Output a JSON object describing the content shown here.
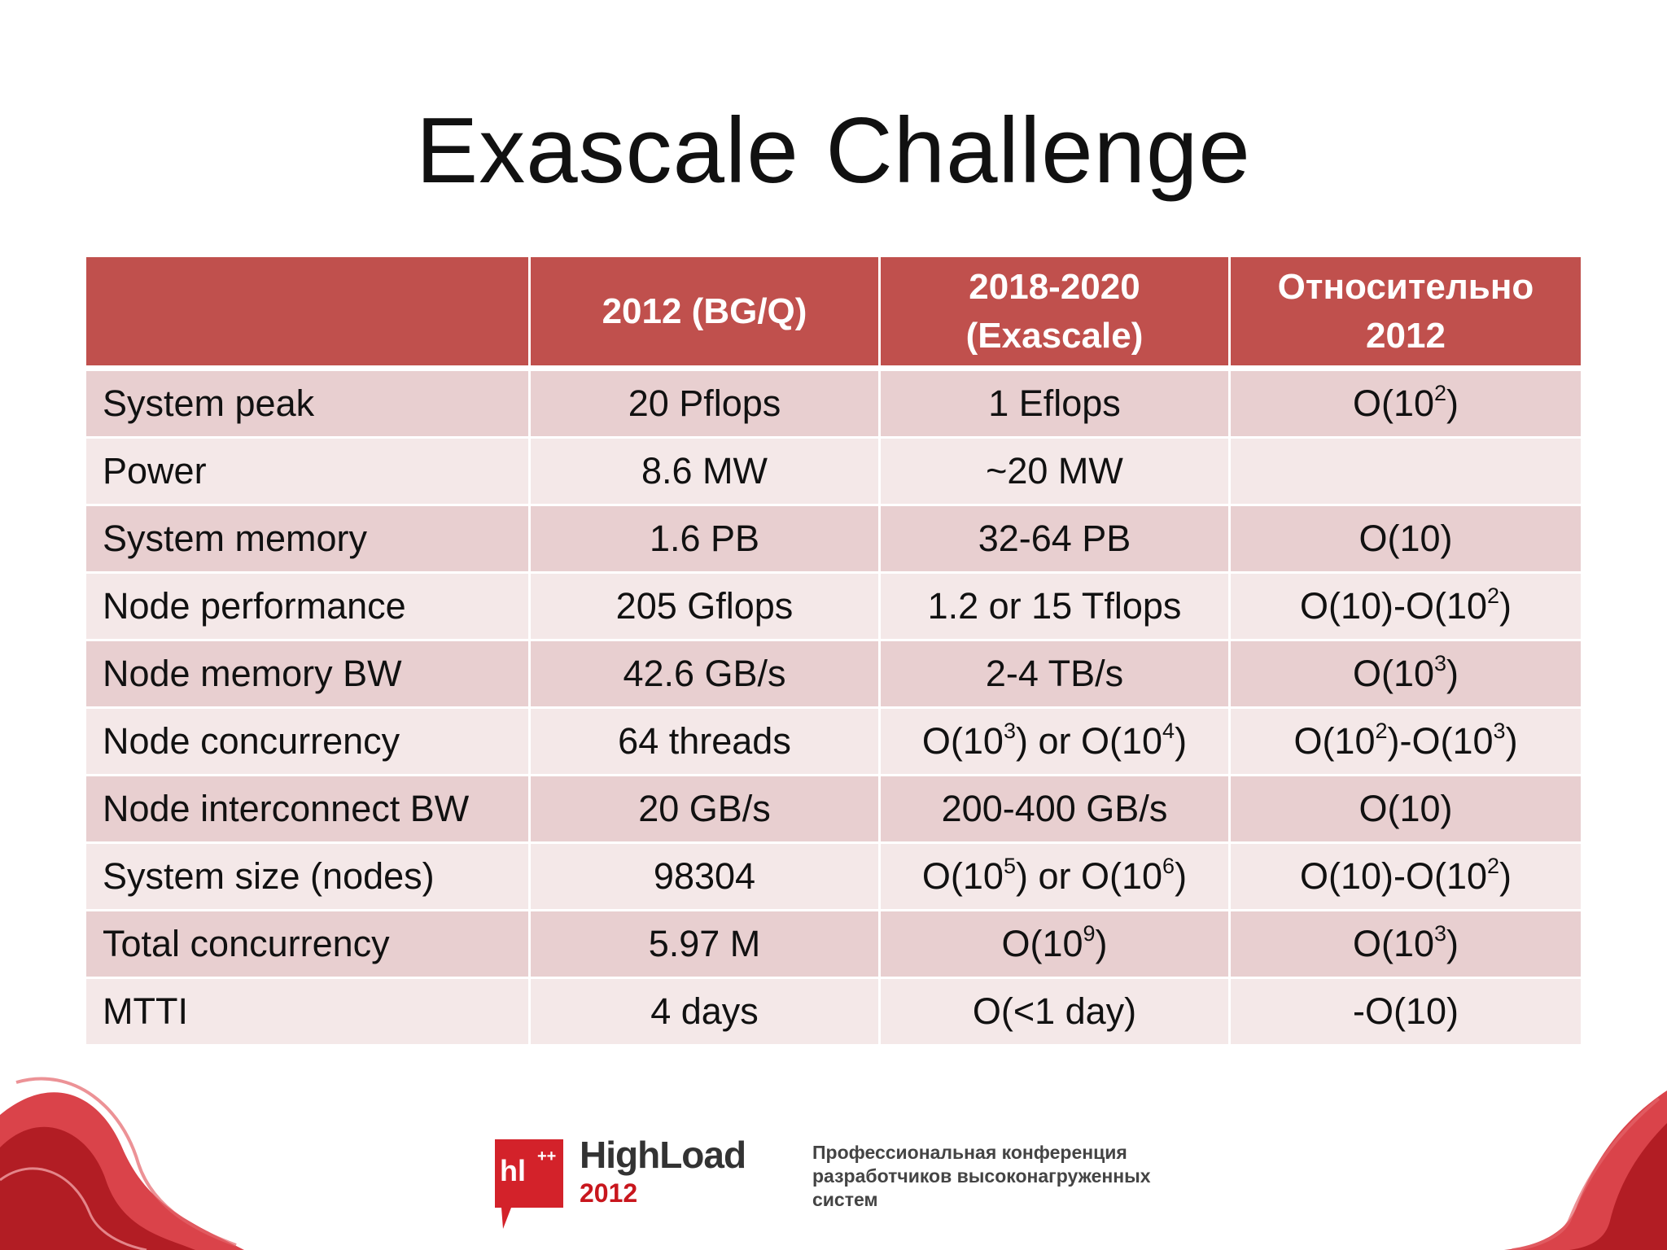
{
  "title": "Exascale Challenge",
  "table": {
    "headers": [
      {
        "line1": "",
        "line2": ""
      },
      {
        "line1": "2012 (BG/Q)",
        "line2": ""
      },
      {
        "line1": "2018-2020",
        "line2": "(Exascale)"
      },
      {
        "line1": "Относительно",
        "line2": "2012"
      }
    ],
    "rows": [
      {
        "label": "System peak",
        "c2012": [
          {
            "t": "20 Pflops"
          }
        ],
        "exa": [
          {
            "t": "1 Eflops"
          }
        ],
        "rel": [
          {
            "t": "O(10"
          },
          {
            "sup": "2"
          },
          {
            "t": ")"
          }
        ]
      },
      {
        "label": "Power",
        "c2012": [
          {
            "t": "8.6 MW"
          }
        ],
        "exa": [
          {
            "t": "~20 MW"
          }
        ],
        "rel": []
      },
      {
        "label": "System memory",
        "c2012": [
          {
            "t": "1.6 PB"
          }
        ],
        "exa": [
          {
            "t": "32-64 PB"
          }
        ],
        "rel": [
          {
            "t": "O(10)"
          }
        ]
      },
      {
        "label": "Node performance",
        "c2012": [
          {
            "t": "205 Gflops"
          }
        ],
        "exa": [
          {
            "t": "1.2 or 15 Tflops"
          }
        ],
        "rel": [
          {
            "t": "O(10)-O(10"
          },
          {
            "sup": "2"
          },
          {
            "t": ")"
          }
        ]
      },
      {
        "label": "Node memory BW",
        "c2012": [
          {
            "t": "42.6 GB/s"
          }
        ],
        "exa": [
          {
            "t": "2-4 TB/s"
          }
        ],
        "rel": [
          {
            "t": "O(10"
          },
          {
            "sup": "3"
          },
          {
            "t": ")"
          }
        ]
      },
      {
        "label": "Node concurrency",
        "c2012": [
          {
            "t": "64 threads"
          }
        ],
        "exa": [
          {
            "t": "O(10"
          },
          {
            "sup": "3"
          },
          {
            "t": ") or O(10"
          },
          {
            "sup": "4"
          },
          {
            "t": ")"
          }
        ],
        "rel": [
          {
            "t": "O(10"
          },
          {
            "sup": "2"
          },
          {
            "t": ")-O(10"
          },
          {
            "sup": "3"
          },
          {
            "t": ")"
          }
        ]
      },
      {
        "label": "Node interconnect BW",
        "c2012": [
          {
            "t": "20 GB/s"
          }
        ],
        "exa": [
          {
            "t": "200-400 GB/s"
          }
        ],
        "rel": [
          {
            "t": "O(10)"
          }
        ]
      },
      {
        "label": "System size (nodes)",
        "c2012": [
          {
            "t": "98304"
          }
        ],
        "exa": [
          {
            "t": "O(10"
          },
          {
            "sup": "5"
          },
          {
            "t": ") or O(10"
          },
          {
            "sup": "6"
          },
          {
            "t": ")"
          }
        ],
        "rel": [
          {
            "t": "O(10)-O(10"
          },
          {
            "sup": "2"
          },
          {
            "t": ")"
          }
        ]
      },
      {
        "label": "Total concurrency",
        "c2012": [
          {
            "t": "5.97 M"
          }
        ],
        "exa": [
          {
            "t": "O(10"
          },
          {
            "sup": "9"
          },
          {
            "t": ")"
          }
        ],
        "rel": [
          {
            "t": "O(10"
          },
          {
            "sup": "3"
          },
          {
            "t": ")"
          }
        ]
      },
      {
        "label": "MTTI",
        "c2012": [
          {
            "t": "4 days"
          }
        ],
        "exa": [
          {
            "t": "O(<1 day)"
          }
        ],
        "rel": [
          {
            "t": "-O(10)"
          }
        ]
      }
    ]
  },
  "footer": {
    "logo_badge": "hl",
    "logo_badge_sup": "++",
    "logo_name": "HighLoad",
    "logo_year": "2012",
    "tagline": [
      "Профессиональная конференция",
      "разработчиков высоконагруженных",
      "систем"
    ]
  },
  "colors": {
    "header_bg": "#c0504d",
    "row_odd": "#e8cfd0",
    "row_even": "#f4e8e8",
    "brand_red": "#c8161d"
  },
  "icons": [
    "highload-logo-icon",
    "red-swirl-decoration"
  ]
}
